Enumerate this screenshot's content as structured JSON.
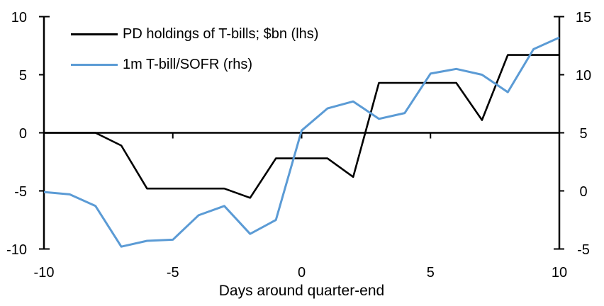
{
  "chart_data": {
    "type": "line",
    "title": "",
    "xlabel": "Days around quarter-end",
    "grid": false,
    "legend_position": "top-left",
    "background_color": "#FFFFFF",
    "axis_color": "#000000",
    "x": [
      -10,
      -9,
      -8,
      -7,
      -6,
      -5,
      -4,
      -3,
      -2,
      -1,
      0,
      1,
      2,
      3,
      4,
      5,
      6,
      7,
      8,
      9,
      10
    ],
    "series": [
      {
        "id": "pd-holdings",
        "name": "PD holdings of T-bills; $bn (lhs)",
        "axis": "left",
        "color": "#000000",
        "values": [
          0.0,
          0.0,
          0.0,
          -1.1,
          -4.8,
          -4.8,
          -4.8,
          -4.8,
          -5.6,
          -2.2,
          -2.2,
          -2.2,
          -3.8,
          4.3,
          4.3,
          4.3,
          4.3,
          1.1,
          6.7,
          6.7,
          6.7
        ]
      },
      {
        "id": "tbill-sofr",
        "name": "1m T-bill/SOFR (rhs)",
        "axis": "right",
        "color": "#5B9BD5",
        "values": [
          -0.1,
          -0.3,
          -1.3,
          -4.8,
          -4.3,
          -4.2,
          -2.1,
          -1.3,
          -3.7,
          -2.5,
          5.2,
          7.1,
          7.7,
          6.2,
          6.7,
          10.1,
          10.5,
          10.0,
          8.5,
          12.2,
          13.2
        ]
      }
    ],
    "left_axis": {
      "min": -10,
      "max": 10,
      "ticks": [
        10,
        5,
        0,
        -5,
        -10
      ]
    },
    "right_axis": {
      "min": -5,
      "max": 15,
      "ticks": [
        15,
        10,
        5,
        0,
        -5
      ]
    },
    "x_axis": {
      "min": -10,
      "max": 10,
      "ticks": [
        -10,
        -5,
        0,
        5,
        10
      ]
    }
  }
}
